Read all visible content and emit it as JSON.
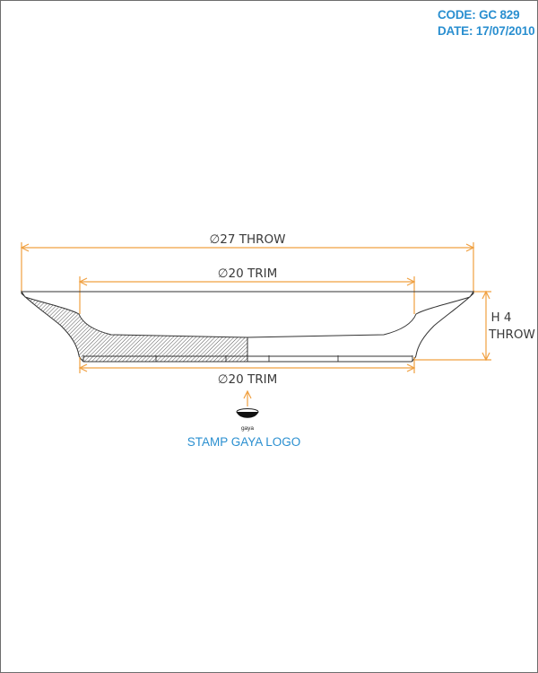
{
  "header": {
    "code_label": "CODE:",
    "code_value": "GC 829",
    "date_label": "DATE:",
    "date_value": "17/07/2010"
  },
  "dimensions": {
    "throw_diameter": "∅27 THROW",
    "trim_diameter_top": "∅20 TRIM",
    "trim_diameter_bottom": "∅20 TRIM",
    "height_line1": "H 4",
    "height_line2": "THROW"
  },
  "stamp": {
    "logo_text": "gaya",
    "label": "STAMP GAYA LOGO"
  },
  "colors": {
    "dimension_line": "#f0a040",
    "outline": "#333333",
    "stamp_label": "#2a8fd0",
    "header_text": "#2a8fd0"
  }
}
